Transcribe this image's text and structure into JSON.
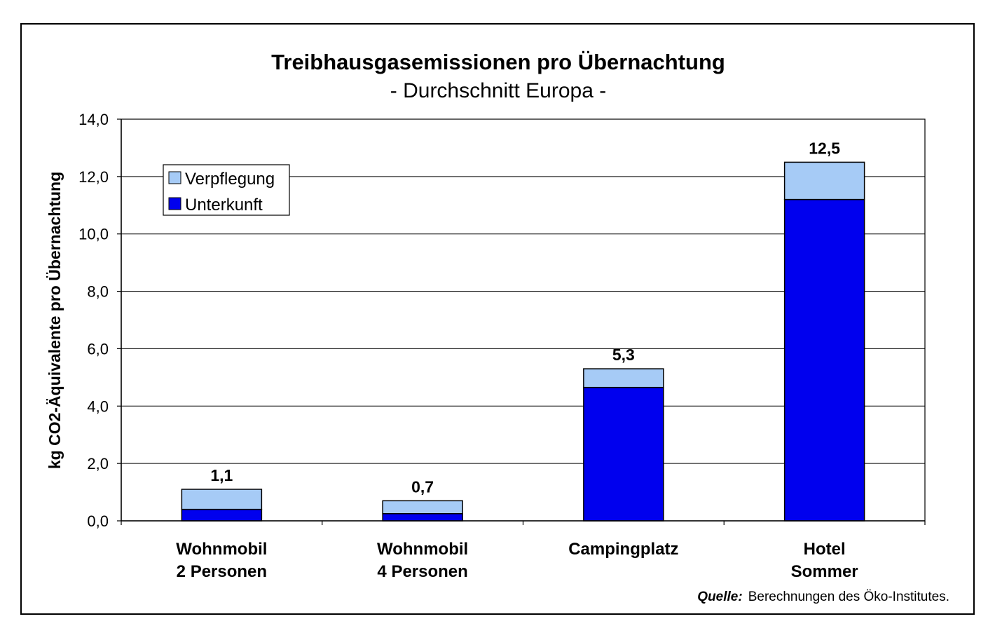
{
  "chart_data": {
    "type": "bar",
    "stacked": true,
    "title": "Treibhausgasemissionen pro Übernachtung",
    "subtitle": "- Durchschnitt Europa -",
    "ylabel": "kg CO2-Äquivalente pro Übernachtung",
    "xlabel": "",
    "ylim": [
      0,
      14
    ],
    "ytick_step": 2,
    "ytick_labels": [
      "0,0",
      "2,0",
      "4,0",
      "6,0",
      "8,0",
      "10,0",
      "12,0",
      "14,0"
    ],
    "grid": true,
    "legend_position": "top-left",
    "categories": [
      [
        "Wohnmobil",
        "2 Personen"
      ],
      [
        "Wohnmobil",
        "4 Personen"
      ],
      [
        "Campingplatz"
      ],
      [
        "Hotel",
        "Sommer"
      ]
    ],
    "series": [
      {
        "name": "Unterkunft",
        "color": "#0000ee",
        "values": [
          0.4,
          0.25,
          4.65,
          11.2
        ]
      },
      {
        "name": "Verpflegung",
        "color": "#a6cbf6",
        "values": [
          0.7,
          0.45,
          0.65,
          1.3
        ]
      }
    ],
    "totals_labels": [
      "1,1",
      "0,7",
      "5,3",
      "12,5"
    ],
    "source_label": "Quelle:",
    "source_text": "Berechnungen des Öko-Institutes."
  }
}
